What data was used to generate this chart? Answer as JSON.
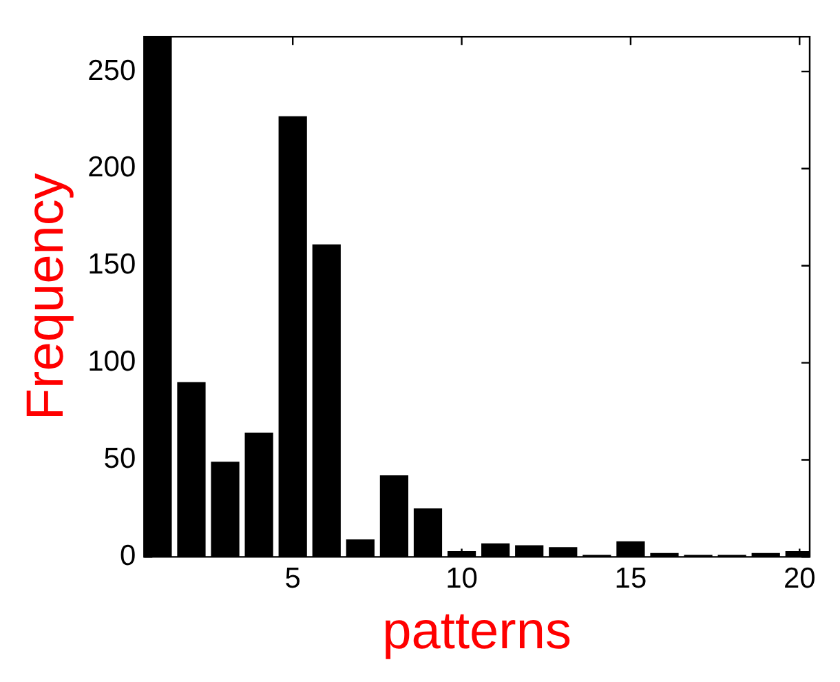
{
  "chart_data": {
    "type": "bar",
    "xlabel": "patterns",
    "ylabel": "Frequency",
    "x": [
      1,
      2,
      3,
      4,
      5,
      6,
      7,
      8,
      9,
      10,
      11,
      12,
      13,
      14,
      15,
      16,
      17,
      18,
      19,
      20
    ],
    "values": [
      268,
      90,
      49,
      64,
      227,
      161,
      9,
      42,
      25,
      3,
      7,
      6,
      5,
      1,
      8,
      2,
      1,
      1,
      2,
      3
    ],
    "color": "#000000",
    "xlim": [
      0.6,
      20.3
    ],
    "xticks": [
      5,
      10,
      15,
      20
    ],
    "ylim": [
      0,
      268
    ],
    "yticks": [
      0,
      50,
      100,
      150,
      200,
      250
    ],
    "grid": false,
    "legend": false
  }
}
